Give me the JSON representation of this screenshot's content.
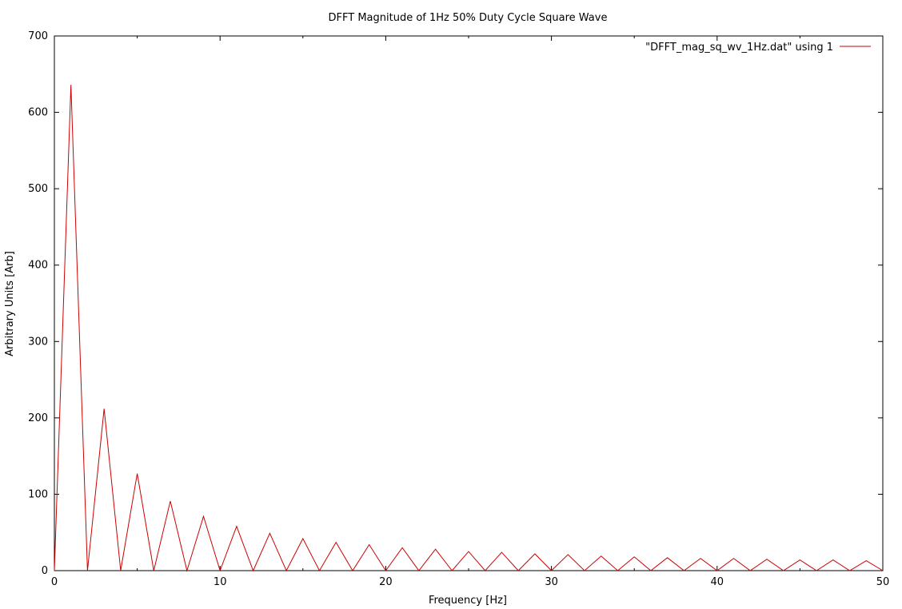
{
  "chart_data": {
    "type": "line",
    "title": "DFFT Magnitude of 1Hz 50% Duty Cycle Square Wave",
    "xlabel": "Frequency [Hz]",
    "ylabel": "Arbitrary Units [Arb]",
    "xlim": [
      0,
      50
    ],
    "ylim": [
      0,
      700
    ],
    "xticks": [
      0,
      10,
      20,
      30,
      40,
      50
    ],
    "yticks": [
      0,
      100,
      200,
      300,
      400,
      500,
      600,
      700
    ],
    "grid": false,
    "legend_position": "top-right",
    "series": [
      {
        "name": "\"DFFT_mag_sq_wv_1Hz.dat\" using 1",
        "color": "#cc0000",
        "x": [
          0,
          1,
          2,
          3,
          4,
          5,
          6,
          7,
          8,
          9,
          10,
          11,
          12,
          13,
          14,
          15,
          16,
          17,
          18,
          19,
          20,
          21,
          22,
          23,
          24,
          25,
          26,
          27,
          28,
          29,
          30,
          31,
          32,
          33,
          34,
          35,
          36,
          37,
          38,
          39,
          40,
          41,
          42,
          43,
          44,
          45,
          46,
          47,
          48,
          49,
          50
        ],
        "y": [
          0,
          636,
          0,
          212,
          0,
          127,
          0,
          91,
          0,
          71,
          0,
          58,
          0,
          49,
          0,
          42,
          0,
          37,
          0,
          34,
          0,
          30,
          0,
          28,
          0,
          25,
          0,
          24,
          0,
          22,
          0,
          21,
          0,
          19,
          0,
          18,
          0,
          17,
          0,
          16,
          0,
          16,
          0,
          15,
          0,
          14,
          0,
          14,
          0,
          13,
          0
        ]
      }
    ]
  }
}
